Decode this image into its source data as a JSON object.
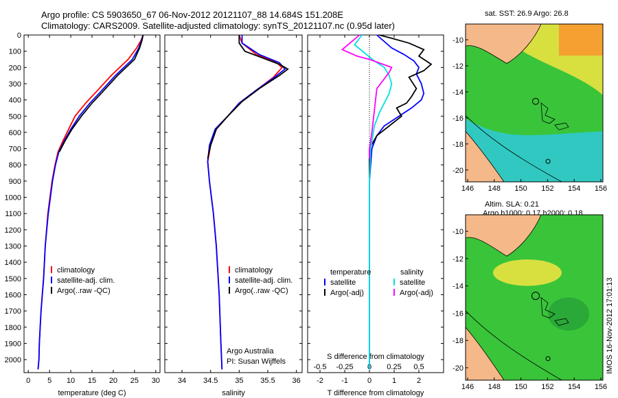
{
  "header": {
    "title_line1": "Argo profile: CS 5903650_67 06-Nov-2012 20121107_88 14.684S 151.208E",
    "title_line2": "Climatology: CARS2009. Satellite-adjusted climatology: synTS_20121107.nc (0.95d later)"
  },
  "maps": {
    "sst_title": "sat. SST: 26.9 Argo: 26.8",
    "sla_title1": "Altim. SLA: 0.21",
    "sla_title2": "Argo h1000: 0.17 h2000: 0.18",
    "lon_ticks": [
      "146",
      "148",
      "150",
      "152",
      "154",
      "156"
    ],
    "lat_ticks": [
      "-10",
      "-12",
      "-14",
      "-16",
      "-18",
      "-20"
    ],
    "colors": {
      "land": "#f5b888",
      "sea_green": "#3ac43a",
      "sea_cyan": "#30c8c0",
      "sea_yellow": "#d8e040",
      "sea_orange": "#f5a030"
    }
  },
  "stamp": "IMOS 16-Nov-2012 17:01:13",
  "chart_data": [
    {
      "type": "line",
      "id": "temperature",
      "xlabel": "temperature (deg C)",
      "ylabel": "",
      "xlim": [
        -1,
        31
      ],
      "ylim": [
        2080,
        0
      ],
      "xticks": [
        "0",
        "5",
        "10",
        "15",
        "20",
        "25",
        "30"
      ],
      "yticks": [
        "0",
        "100",
        "200",
        "300",
        "400",
        "500",
        "600",
        "700",
        "800",
        "900",
        "1000",
        "1100",
        "1200",
        "1300",
        "1400",
        "1500",
        "1600",
        "1700",
        "1800",
        "1900",
        "2000"
      ],
      "legend": [
        "climatology",
        "satellite-adj. clim.",
        "Argo(..raw -QC)"
      ],
      "series": [
        {
          "name": "climatology",
          "color": "#ff0000",
          "x": [
            27.0,
            26.6,
            25.5,
            23.5,
            19.5,
            16.0,
            13.5,
            11.0,
            9.5,
            8.2,
            7.0,
            6.3,
            5.6,
            4.6,
            4.0,
            3.6,
            3.3,
            3.0,
            2.8,
            2.6,
            2.5,
            2.3
          ],
          "depth": [
            0,
            30,
            80,
            150,
            250,
            350,
            420,
            500,
            580,
            650,
            720,
            800,
            900,
            1100,
            1300,
            1500,
            1600,
            1700,
            1800,
            1900,
            2000,
            2060
          ]
        },
        {
          "name": "satellite-adj. clim.",
          "color": "#0000ff",
          "x": [
            27.0,
            26.7,
            26.0,
            24.5,
            20.5,
            17.0,
            14.5,
            12.0,
            10.0,
            8.5,
            7.2,
            6.4,
            5.7,
            4.7,
            4.0,
            3.6,
            3.3,
            3.0,
            2.8,
            2.6,
            2.5,
            2.3
          ],
          "depth": [
            0,
            30,
            80,
            150,
            250,
            350,
            420,
            500,
            580,
            650,
            720,
            800,
            900,
            1100,
            1300,
            1500,
            1600,
            1700,
            1800,
            1900,
            2000,
            2060
          ]
        },
        {
          "name": "Argo(..raw -QC)",
          "color": "#000000",
          "x": [
            27.0,
            26.8,
            26.2,
            25.0,
            21.0,
            17.5,
            15.0,
            12.5,
            10.3,
            8.7,
            7.3
          ],
          "depth": [
            0,
            30,
            80,
            150,
            250,
            350,
            420,
            500,
            580,
            650,
            720
          ]
        }
      ]
    },
    {
      "type": "line",
      "id": "salinity",
      "xlabel": "salinity",
      "ylabel": "",
      "xlim": [
        33.7,
        36.1
      ],
      "ylim": [
        2080,
        0
      ],
      "xticks": [
        "34",
        "34.5",
        "35",
        "35.5",
        "36"
      ],
      "legend": [
        "climatology",
        "satellite-adj. clim.",
        "Argo(..raw -QC)"
      ],
      "annotation": [
        "Argo Australia",
        "PI: Susan Wijffels"
      ],
      "series": [
        {
          "name": "climatology",
          "color": "#ff0000",
          "x": [
            35.0,
            35.05,
            35.3,
            35.65,
            35.75,
            35.6,
            35.3,
            35.0,
            34.8,
            34.6,
            34.5,
            34.45,
            34.48,
            34.55,
            34.6,
            34.65,
            34.68,
            34.7
          ],
          "depth": [
            0,
            50,
            120,
            170,
            200,
            260,
            340,
            420,
            500,
            580,
            680,
            780,
            900,
            1100,
            1300,
            1600,
            1900,
            2060
          ]
        },
        {
          "name": "satellite-adj. clim.",
          "color": "#0000ff",
          "x": [
            35.05,
            35.05,
            35.35,
            35.7,
            35.8,
            35.62,
            35.3,
            35.0,
            34.8,
            34.58,
            34.48,
            34.45,
            34.48,
            34.55,
            34.6,
            34.65,
            34.68,
            34.7
          ],
          "depth": [
            0,
            50,
            120,
            170,
            210,
            260,
            340,
            420,
            500,
            580,
            680,
            780,
            900,
            1100,
            1300,
            1600,
            1900,
            2060
          ]
        },
        {
          "name": "Argo(..raw -QC)",
          "color": "#000000",
          "x": [
            35.0,
            35.0,
            35.1,
            35.4,
            35.7,
            35.85,
            35.7,
            35.35,
            35.05,
            34.8,
            34.6,
            34.5,
            34.45
          ],
          "depth": [
            0,
            50,
            100,
            140,
            180,
            210,
            250,
            330,
            410,
            500,
            580,
            680,
            760
          ]
        }
      ]
    },
    {
      "type": "line",
      "id": "difference",
      "xlabel": "T difference from climatology",
      "xlabel2": "S difference from climatology",
      "xlim": [
        -2.5,
        3.0
      ],
      "ylim": [
        2080,
        0
      ],
      "xticks": [
        "-2",
        "-1",
        "0",
        "1",
        "2"
      ],
      "xticks_top": [
        "-0.5",
        "-0.25",
        "0",
        "0.25",
        "0.5"
      ],
      "legend_titles": [
        "temperature",
        "salinity"
      ],
      "legend": [
        "satellite",
        "Argo(-adj)",
        "satellite",
        "Argo(-adj)"
      ],
      "series": [
        {
          "name": "T satellite",
          "color": "#0000ff",
          "x": [
            0.3,
            0.6,
            0.9,
            1.4,
            1.8,
            2.0,
            1.9,
            2.1,
            2.2,
            2.1,
            1.7,
            1.2,
            0.6,
            0.3,
            0.1,
            0.0,
            0.0,
            0.0
          ],
          "depth": [
            0,
            40,
            80,
            120,
            160,
            200,
            240,
            300,
            360,
            400,
            450,
            500,
            560,
            620,
            700,
            900,
            1400,
            2060
          ]
        },
        {
          "name": "T Argo(-adj)",
          "color": "#000000",
          "x": [
            0.4,
            0.9,
            1.6,
            2.2,
            2.0,
            2.5,
            2.2,
            1.6,
            1.9,
            1.7,
            1.5,
            1.1,
            1.3,
            0.8,
            0.3,
            0.0,
            0.0
          ],
          "depth": [
            0,
            20,
            50,
            90,
            130,
            180,
            220,
            260,
            330,
            380,
            420,
            450,
            500,
            560,
            620,
            700,
            880
          ]
        },
        {
          "name": "S satellite",
          "color": "#00e0e0",
          "x": [
            -0.3,
            -0.6,
            -0.2,
            0.2,
            0.6,
            0.8,
            0.9,
            0.8,
            0.6,
            0.4,
            0.2,
            0.05,
            0.0,
            0.0,
            0.0
          ],
          "depth": [
            0,
            60,
            110,
            160,
            200,
            250,
            300,
            360,
            420,
            480,
            560,
            700,
            900,
            1400,
            2060
          ]
        },
        {
          "name": "S Argo(-adj)",
          "color": "#ff00ff",
          "x": [
            -0.4,
            -1.1,
            -0.5,
            0.0,
            0.9,
            0.8,
            0.3,
            0.1,
            0.0,
            0.0
          ],
          "depth": [
            0,
            90,
            130,
            150,
            200,
            230,
            330,
            600,
            700,
            760
          ]
        }
      ]
    }
  ]
}
